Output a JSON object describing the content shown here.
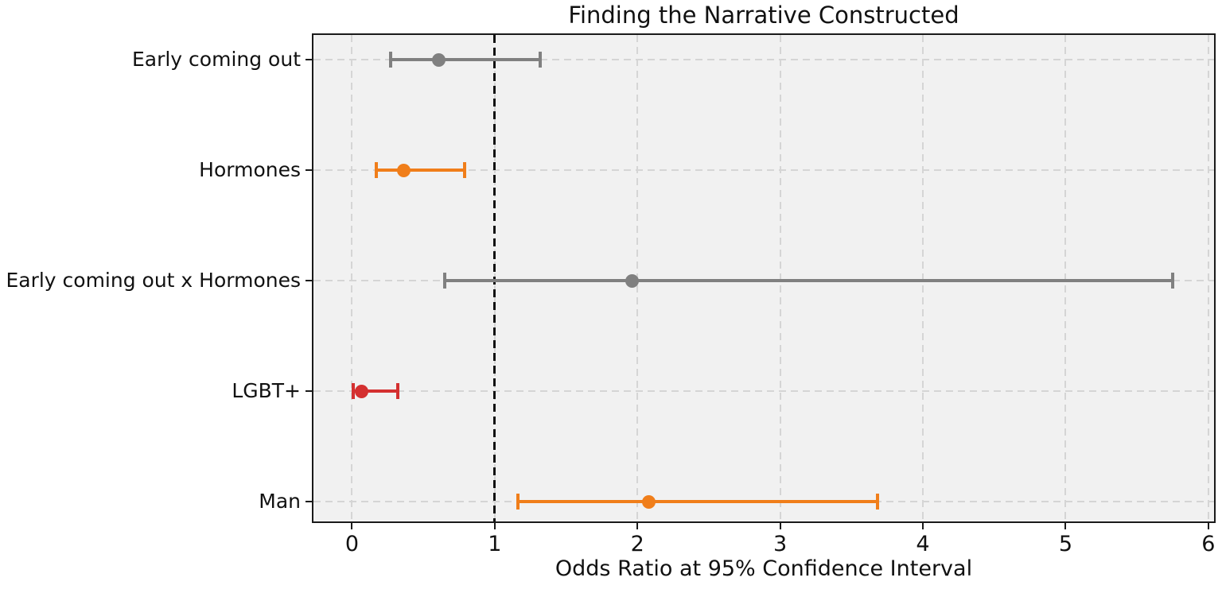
{
  "figure": {
    "background": "#ffffff",
    "plot_background": "#f1f1f1"
  },
  "chart_data": {
    "type": "scatter",
    "subtype": "horizontal-errorbar-forest-plot",
    "title": "Finding the Narrative Constructed",
    "xlabel": "Odds Ratio at 95% Confidence Interval",
    "ylabel": "",
    "categories": [
      "Early coming out",
      "Hormones",
      "Early coming out x Hormones",
      "LGBT+",
      "Man"
    ],
    "series": [
      {
        "name": "Odds Ratio with 95% CI",
        "points": [
          {
            "label": "Early coming out",
            "odds_ratio": 0.61,
            "ci_low": 0.27,
            "ci_high": 1.32,
            "color": "#808080"
          },
          {
            "label": "Hormones",
            "odds_ratio": 0.36,
            "ci_low": 0.17,
            "ci_high": 0.79,
            "color": "#f07e1a"
          },
          {
            "label": "Early coming out x Hormones",
            "odds_ratio": 1.96,
            "ci_low": 0.65,
            "ci_high": 5.75,
            "color": "#808080"
          },
          {
            "label": "LGBT+",
            "odds_ratio": 0.07,
            "ci_low": 0.01,
            "ci_high": 0.32,
            "color": "#d43030"
          },
          {
            "label": "Man",
            "odds_ratio": 2.08,
            "ci_low": 1.16,
            "ci_high": 3.68,
            "color": "#f07e1a"
          }
        ]
      }
    ],
    "x_ticks": [
      0,
      1,
      2,
      3,
      4,
      5,
      6
    ],
    "xlim": [
      -0.27,
      6.04
    ],
    "reference_line_x": 1,
    "grid": "dashed, both axes",
    "legend": "none"
  },
  "colors": {
    "series_gray": "#808080",
    "series_orange": "#f07e1a",
    "series_red": "#d43030",
    "gridline": "#d5d5d5",
    "reference_line": "#111111",
    "spine": "#1a1a1a"
  }
}
